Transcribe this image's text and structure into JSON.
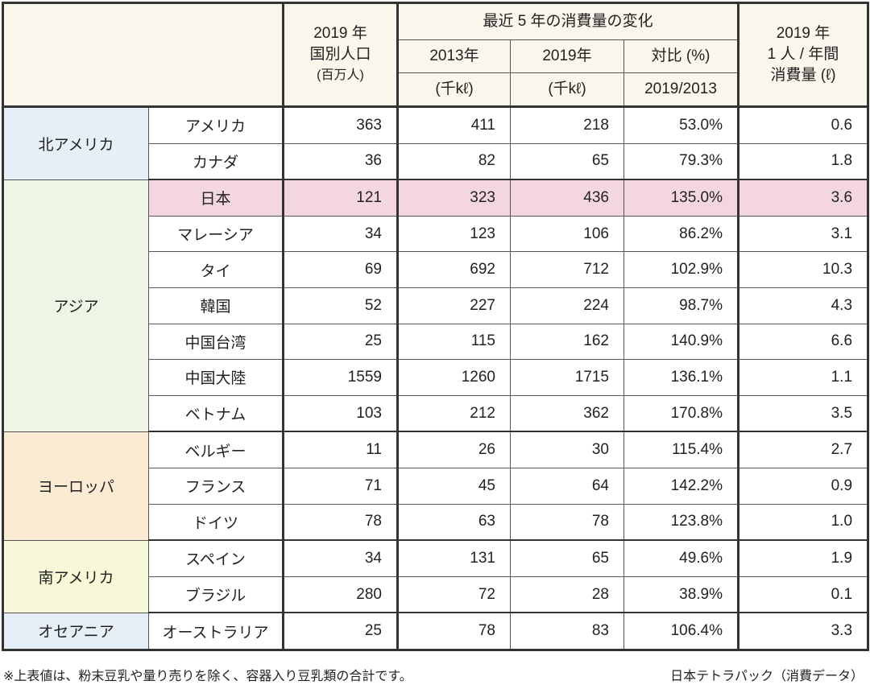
{
  "header": {
    "population": [
      "2019 年",
      "国別人口",
      "(百万人)"
    ],
    "change_title": "最近 5 年の消費量の変化",
    "col_2013": "2013年",
    "col_2019": "2019年",
    "col_ratio": "対比 (%)",
    "unit_2013": "(千kℓ)",
    "unit_2019": "(千kℓ)",
    "ratio_sub": "2019/2013",
    "per_capita": [
      "2019 年",
      "1 人 / 年間",
      "消費量 (ℓ)"
    ]
  },
  "regions": [
    {
      "name": "北アメリカ",
      "rows": [
        {
          "country": "アメリカ",
          "pop": "363",
          "c2013": "411",
          "c2019": "218",
          "ratio": "53.0%",
          "per": "0.6"
        },
        {
          "country": "カナダ",
          "pop": "36",
          "c2013": "82",
          "c2019": "65",
          "ratio": "79.3%",
          "per": "1.8"
        }
      ]
    },
    {
      "name": "アジア",
      "rows": [
        {
          "country": "日本",
          "pop": "121",
          "c2013": "323",
          "c2019": "436",
          "ratio": "135.0%",
          "per": "3.6",
          "highlight": true
        },
        {
          "country": "マレーシア",
          "pop": "34",
          "c2013": "123",
          "c2019": "106",
          "ratio": "86.2%",
          "per": "3.1"
        },
        {
          "country": "タイ",
          "pop": "69",
          "c2013": "692",
          "c2019": "712",
          "ratio": "102.9%",
          "per": "10.3"
        },
        {
          "country": "韓国",
          "pop": "52",
          "c2013": "227",
          "c2019": "224",
          "ratio": "98.7%",
          "per": "4.3"
        },
        {
          "country": "中国台湾",
          "pop": "25",
          "c2013": "115",
          "c2019": "162",
          "ratio": "140.9%",
          "per": "6.6"
        },
        {
          "country": "中国大陸",
          "pop": "1559",
          "c2013": "1260",
          "c2019": "1715",
          "ratio": "136.1%",
          "per": "1.1"
        },
        {
          "country": "ベトナム",
          "pop": "103",
          "c2013": "212",
          "c2019": "362",
          "ratio": "170.8%",
          "per": "3.5"
        }
      ]
    },
    {
      "name": "ヨーロッパ",
      "rows": [
        {
          "country": "ベルギー",
          "pop": "11",
          "c2013": "26",
          "c2019": "30",
          "ratio": "115.4%",
          "per": "2.7"
        },
        {
          "country": "フランス",
          "pop": "71",
          "c2013": "45",
          "c2019": "64",
          "ratio": "142.2%",
          "per": "0.9"
        },
        {
          "country": "ドイツ",
          "pop": "78",
          "c2013": "63",
          "c2019": "78",
          "ratio": "123.8%",
          "per": "1.0"
        }
      ]
    },
    {
      "name": "南アメリカ",
      "rows": [
        {
          "country": "スペイン",
          "pop": "34",
          "c2013": "131",
          "c2019": "65",
          "ratio": "49.6%",
          "per": "1.9"
        },
        {
          "country": "ブラジル",
          "pop": "280",
          "c2013": "72",
          "c2019": "28",
          "ratio": "38.9%",
          "per": "0.1"
        }
      ]
    },
    {
      "name": "オセアニア",
      "rows": [
        {
          "country": "オーストラリア",
          "pop": "25",
          "c2013": "78",
          "c2019": "83",
          "ratio": "106.4%",
          "per": "3.3"
        }
      ]
    }
  ],
  "footer": {
    "note": "※上表値は、粉末豆乳や量り売りを除く、容器入り豆乳類の合計です。",
    "source": "日本テトラパック（消費データ）"
  }
}
